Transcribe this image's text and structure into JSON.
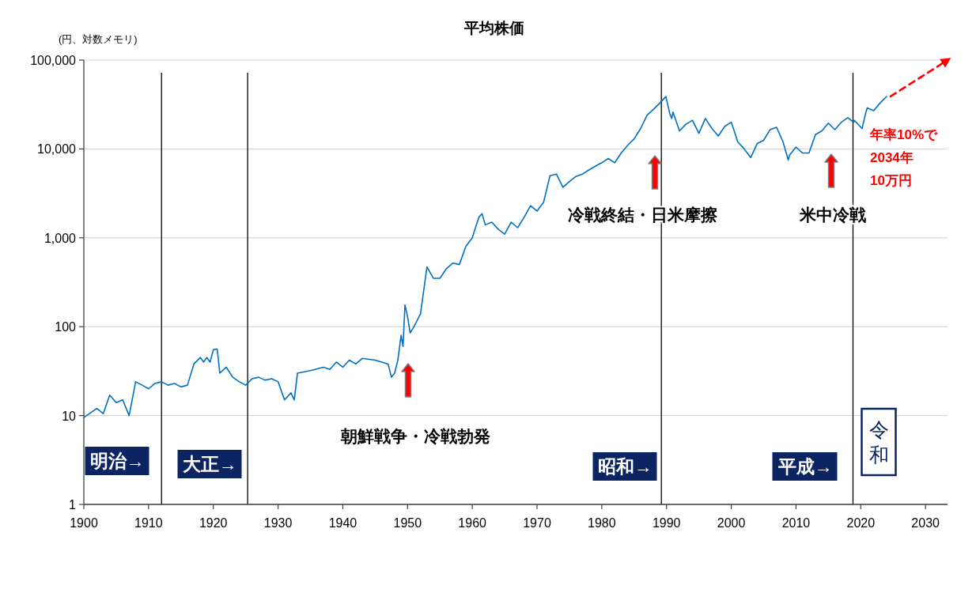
{
  "chart_data": {
    "type": "line",
    "title": "平均株価",
    "ylabel": "(円、対数メモリ)",
    "log": "y",
    "grid": "y",
    "xlim": [
      1900,
      2033.4
    ],
    "ylim": [
      1,
      100000
    ],
    "xticks": [
      1900,
      1910,
      1920,
      1930,
      1940,
      1950,
      1960,
      1970,
      1980,
      1990,
      2000,
      2010,
      2020,
      2030
    ],
    "yticks": [
      1,
      10,
      100,
      {
        "value": 1000,
        "label": "1,000"
      },
      {
        "value": 10000,
        "label": "10,000"
      },
      {
        "value": 100000,
        "label": "100,000"
      }
    ],
    "series": [
      {
        "color": "#0070c0",
        "x": [
          1900,
          1902,
          1903,
          1904,
          1905,
          1906,
          1907,
          1908,
          1909,
          1910,
          1911,
          1912,
          1913,
          1914,
          1915,
          1916,
          1917,
          1918,
          1918.5,
          1919,
          1919.5,
          1920,
          1920.6,
          1921,
          1922,
          1923,
          1924,
          1925,
          1926,
          1927,
          1928,
          1929,
          1930,
          1931,
          1932,
          1932.5,
          1933,
          1935,
          1937,
          1938,
          1939,
          1940,
          1941,
          1942,
          1943,
          1945,
          1946,
          1947,
          1947.5,
          1948,
          1948.5,
          1949,
          1949.3,
          1949.6,
          1950,
          1950.4,
          1951,
          1952,
          1953,
          1954,
          1955,
          1956,
          1957,
          1958,
          1959,
          1960,
          1961,
          1961.5,
          1962,
          1963,
          1964,
          1965,
          1966,
          1967,
          1968,
          1969,
          1970,
          1971,
          1972,
          1973,
          1974,
          1975,
          1976,
          1977,
          1978,
          1979,
          1980,
          1981,
          1982,
          1983,
          1984,
          1985,
          1986,
          1987,
          1988,
          1989,
          1989.9,
          1990.5,
          1990.8,
          1991,
          1992,
          1993,
          1994,
          1995,
          1996,
          1997,
          1998,
          1999,
          2000,
          2001,
          2002,
          2003,
          2004,
          2005,
          2006,
          2007,
          2008,
          2008.8,
          2009,
          2010,
          2011,
          2012,
          2013,
          2014,
          2015,
          2016,
          2017,
          2018,
          2018.9,
          2019,
          2020.2,
          2020.8,
          2021,
          2022,
          2023,
          2024
        ],
        "values": [
          9.5,
          12,
          10.5,
          17,
          14,
          15,
          10,
          24,
          22,
          20,
          23,
          24,
          22,
          23,
          21,
          22,
          38,
          45,
          40,
          45,
          40,
          55,
          56,
          30,
          35,
          27,
          24,
          22,
          26,
          27,
          25,
          26,
          24,
          15,
          18,
          15,
          30,
          32,
          35,
          33,
          40,
          35,
          42,
          38,
          44,
          42,
          40,
          38,
          27,
          30,
          42,
          80,
          60,
          176,
          130,
          85,
          100,
          140,
          471,
          350,
          350,
          450,
          520,
          500,
          800,
          1000,
          1700,
          1870,
          1400,
          1500,
          1250,
          1100,
          1500,
          1300,
          1700,
          2300,
          2000,
          2500,
          5000,
          5200,
          3700,
          4300,
          4900,
          5200,
          5800,
          6400,
          7000,
          7800,
          7000,
          9000,
          11000,
          13000,
          17000,
          24000,
          28000,
          33000,
          38900,
          25000,
          22000,
          26000,
          16000,
          19000,
          21000,
          15000,
          22000,
          17000,
          14000,
          18000,
          20000,
          12000,
          10000,
          8000,
          11500,
          12500,
          16500,
          17500,
          12000,
          7500,
          8500,
          10500,
          9000,
          9000,
          14500,
          16000,
          19500,
          16500,
          20000,
          22500,
          20000,
          21000,
          17000,
          26000,
          29000,
          27000,
          33000,
          39000
        ]
      },
      {
        "color": "#ff0000",
        "line_style": "dashed",
        "x": [
          2024.6,
          2033.4
        ],
        "values": [
          39000,
          100000
        ]
      }
    ],
    "ref_lines": [
      {
        "axis": "x",
        "value": 1912,
        "color": "#000000"
      },
      {
        "axis": "x",
        "value": 1925.3,
        "color": "#000000"
      },
      {
        "axis": "x",
        "value": 1989.2,
        "color": "#000000"
      },
      {
        "axis": "x",
        "value": 2018.8,
        "color": "#000000"
      }
    ],
    "annotations": [
      "明治→",
      "大正→",
      "昭和→",
      "平成→",
      "令和",
      "朝鮮戦争・冷戦勃発",
      "冷戦終結・日米摩擦",
      "米中冷戦",
      "年率10%で\n2034年\n10万円"
    ]
  }
}
